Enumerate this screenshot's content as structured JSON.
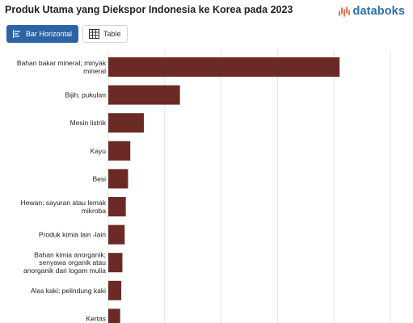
{
  "header": {
    "title": "Produk Utama yang Diekspor Indonesia ke Korea pada 2023",
    "brand": "databoks",
    "brand_color": "#e2502c"
  },
  "toolbar": {
    "bar_button_label": "Bar Horizontal",
    "bar_button_icon": "bar-chart-icon",
    "table_button_label": "Table",
    "table_button_icon": "table-grid-icon",
    "active_color": "#2c63a4"
  },
  "chart_data": {
    "type": "bar",
    "orientation": "horizontal",
    "bar_color": "#6b2a25",
    "grid": true,
    "categories": [
      [
        "Bahan bakar mineral; minyak",
        "mineral"
      ],
      [
        "Bijih; pukulan"
      ],
      [
        "Mesin listrik"
      ],
      [
        "Kayu"
      ],
      [
        "Besi"
      ],
      [
        "Hewan; sayuran atau lemak",
        "mikroba"
      ],
      [
        "Produk kimia lain -lain"
      ],
      [
        "Bahan kimia anorganik;",
        "senyawa organik atau",
        "anorganik dari logam mulia"
      ],
      [
        "Alas kaki; pelindung kaki"
      ],
      [
        "Kertas"
      ]
    ],
    "values": [
      4.1,
      1.27,
      0.63,
      0.39,
      0.35,
      0.31,
      0.29,
      0.25,
      0.23,
      0.21
    ],
    "xlim": [
      0,
      5
    ]
  }
}
